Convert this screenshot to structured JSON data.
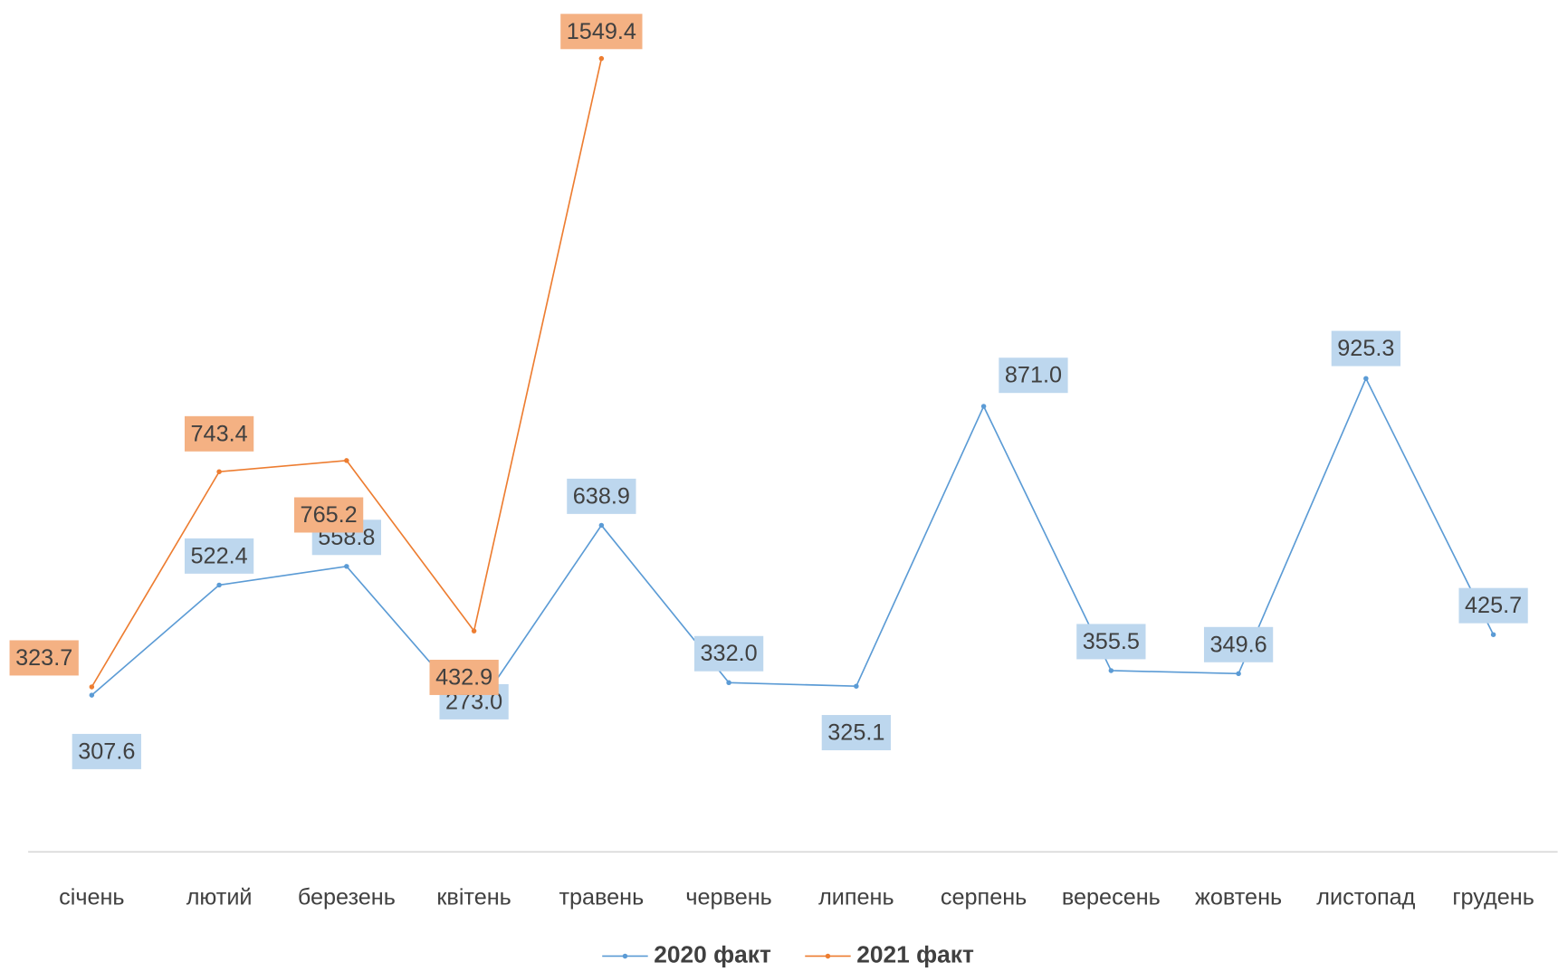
{
  "chart_data": {
    "type": "line",
    "categories": [
      "січень",
      "лютий",
      "березень",
      "квітень",
      "травень",
      "червень",
      "липень",
      "серпень",
      "вересень",
      "жовтень",
      "листопад",
      "грудень"
    ],
    "series": [
      {
        "name": "2020 факт",
        "color": "#5b9bd5",
        "values": [
          307.6,
          522.4,
          558.8,
          273.0,
          638.9,
          332.0,
          325.1,
          871.0,
          355.5,
          349.6,
          925.3,
          425.7
        ],
        "value_labels": [
          "307.6",
          "522.4",
          "558.8",
          "273.0",
          "638.9",
          "332.0",
          "325.1",
          "871.0",
          "355.5",
          "349.6",
          "925.3",
          "425.7"
        ]
      },
      {
        "name": "2021 факт",
        "color": "#ed7d31",
        "values": [
          323.7,
          743.4,
          765.2,
          432.9,
          1549.4,
          null,
          null,
          null,
          null,
          null,
          null,
          null
        ],
        "value_labels": [
          "323.7",
          "743.4",
          "765.2",
          "432.9",
          "1549.4",
          null,
          null,
          null,
          null,
          null,
          null,
          null
        ]
      }
    ],
    "ylim": [
      0,
      1650
    ],
    "legend": "bottom"
  }
}
